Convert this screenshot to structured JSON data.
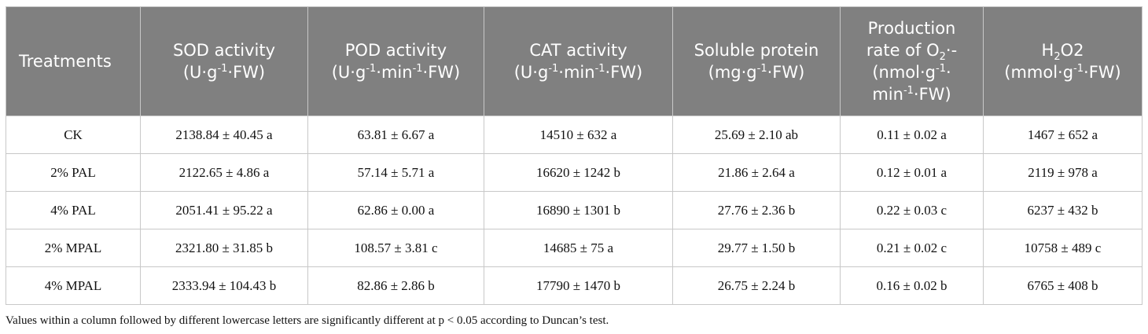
{
  "table": {
    "headers": [
      {
        "lines": [
          "Treatments"
        ]
      },
      {
        "lines": [
          "SOD activity",
          "(U·g<sup>-1</sup>·FW)"
        ]
      },
      {
        "lines": [
          "POD activity",
          "(U·g<sup>-1</sup>·min<sup>-1</sup>·FW)"
        ]
      },
      {
        "lines": [
          "CAT activity",
          "(U·g<sup>-1</sup>·min<sup>-1</sup>·FW)"
        ]
      },
      {
        "lines": [
          "Soluble protein",
          "(mg·g<sup>-1</sup>·FW)"
        ]
      },
      {
        "lines": [
          "Production",
          "rate of O<sub>2</sub>·-",
          "(nmol·g<sup>-1</sup>·",
          "min<sup>-1</sup>·FW)"
        ]
      },
      {
        "lines": [
          "H<sub>2</sub>O2",
          "(mmol·g<sup>-1</sup>·FW)"
        ]
      }
    ],
    "rows": [
      [
        "CK",
        "2138.84 ± 40.45 a",
        "63.81 ± 6.67 a",
        "14510 ± 632 a",
        "25.69 ± 2.10 ab",
        "0.11 ± 0.02 a",
        "1467 ± 652 a"
      ],
      [
        "2% PAL",
        "2122.65 ± 4.86 a",
        "57.14 ± 5.71 a",
        "16620 ± 1242 b",
        "21.86 ± 2.64 a",
        "0.12 ± 0.01 a",
        "2119 ± 978 a"
      ],
      [
        "4% PAL",
        "2051.41 ± 95.22 a",
        "62.86 ± 0.00 a",
        "16890 ± 1301 b",
        "27.76 ± 2.36 b",
        "0.22 ± 0.03 c",
        "6237 ± 432 b"
      ],
      [
        "2% MPAL",
        "2321.80 ± 31.85 b",
        "108.57 ± 3.81 c",
        "14685 ± 75 a",
        "29.77 ± 1.50 b",
        "0.21 ± 0.02 c",
        "10758 ± 489 c"
      ],
      [
        "4% MPAL",
        "2333.94 ± 104.43 b",
        "82.86 ± 2.86 b",
        "17790 ± 1470 b",
        "26.75 ± 2.24 b",
        "0.16 ± 0.02 b",
        "6765 ± 408 b"
      ]
    ]
  },
  "footnote": "Values within a column followed by different lowercase letters are significantly different at p < 0.05 according to Duncan’s test."
}
